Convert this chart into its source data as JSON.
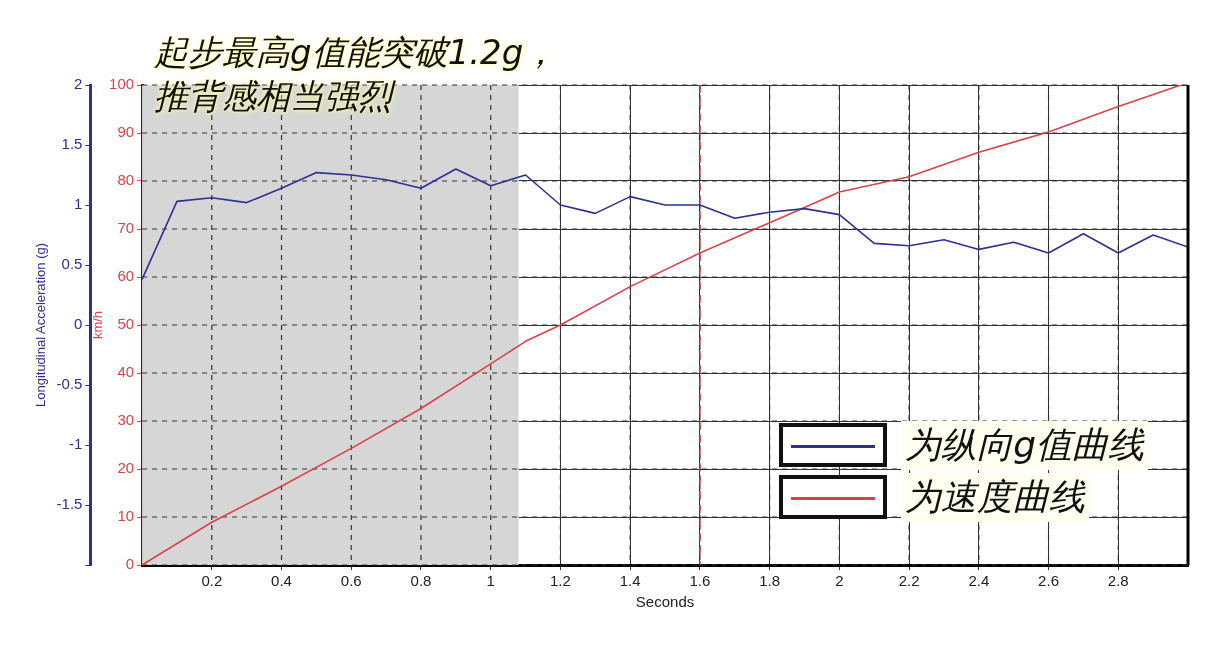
{
  "chart_data": {
    "type": "line",
    "annotations": [
      "起步最高g值能突破1.2g，",
      "推背感相当强烈"
    ],
    "xlabel": "Seconds",
    "ylabel": "km/h",
    "y2label": "Longitudinal Acceleration (g)",
    "xlim": [
      0,
      3
    ],
    "xticks": [
      0.2,
      0.4,
      0.6,
      0.8,
      1,
      1.2,
      1.4,
      1.6,
      1.8,
      2,
      2.2,
      2.4,
      2.6,
      2.8
    ],
    "ylim": [
      0,
      100
    ],
    "yticks": [
      0,
      10,
      20,
      30,
      40,
      50,
      60,
      70,
      80,
      90,
      100
    ],
    "y2lim": [
      -2,
      2
    ],
    "y2ticks": [
      {
        "value": -2,
        "label": null
      },
      -1.5,
      -1,
      -0.5,
      0,
      0.5,
      1,
      1.5,
      2
    ],
    "grid": true,
    "legend": "bottom right",
    "marker": "none",
    "line_style": "solid",
    "series": [
      {
        "name": "为纵向g值曲线",
        "color": "#2e3192",
        "axis": "y2",
        "x": [
          0,
          0.1,
          0.2,
          0.3,
          0.4,
          0.5,
          0.6,
          0.7,
          0.8,
          0.9,
          1.0,
          1.1,
          1.2,
          1.3,
          1.4,
          1.5,
          1.6,
          1.7,
          1.8,
          1.9,
          2.0,
          2.1,
          2.2,
          2.3,
          2.4,
          2.5,
          2.6,
          2.7,
          2.8,
          2.9,
          3.0
        ],
        "values": [
          0.38,
          1.03,
          1.06,
          1.02,
          1.14,
          1.27,
          1.25,
          1.21,
          1.14,
          1.3,
          1.16,
          1.25,
          1.0,
          0.93,
          1.07,
          1.0,
          1.0,
          0.89,
          0.94,
          0.97,
          0.92,
          0.68,
          0.66,
          0.71,
          0.63,
          0.69,
          0.6,
          0.76,
          0.6,
          0.75,
          0.65
        ]
      },
      {
        "name": "为速度曲线",
        "color": "#d9434a",
        "x": [
          0,
          0.2,
          0.4,
          0.6,
          0.8,
          1.0,
          1.1,
          1.2,
          1.4,
          1.6,
          1.8,
          1.9,
          2.0,
          2.2,
          2.4,
          2.6,
          2.8,
          2.98
        ],
        "values": [
          0,
          8.9,
          16.4,
          24.3,
          32.6,
          41.9,
          46.6,
          50,
          58,
          65,
          71.3,
          74.5,
          77.7,
          80.9,
          86,
          90.2,
          95.5,
          100
        ]
      }
    ],
    "ref_lines": [
      {
        "axis": "x",
        "value": 1.6,
        "color": "#c0392b",
        "line_style": "dashed"
      }
    ],
    "bands": [
      {
        "axis": "x",
        "from": 0,
        "to": 1.08,
        "color": "#d6d6d6"
      }
    ]
  }
}
